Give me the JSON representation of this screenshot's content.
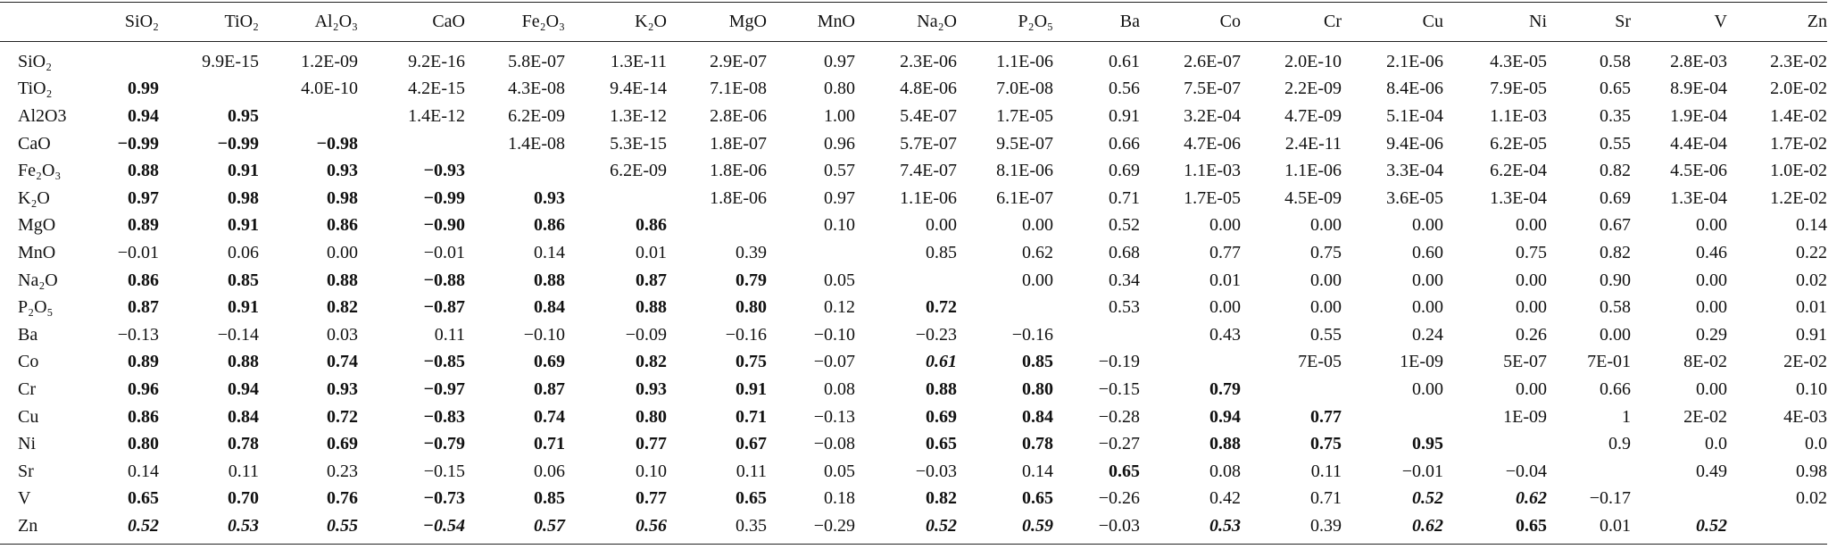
{
  "table": {
    "columns": [
      "SiO₂",
      "TiO₂",
      "Al₂O₃",
      "CaO",
      "Fe₂O₃",
      "K₂O",
      "MgO",
      "MnO",
      "Na₂O",
      "P₂O₅",
      "Ba",
      "Co",
      "Cr",
      "Cu",
      "Ni",
      "Sr",
      "V",
      "Zn"
    ],
    "rows": [
      {
        "label": "SiO₂",
        "cells": [
          null,
          "9.9E-15",
          "1.2E-09",
          "9.2E-16",
          "5.8E-07",
          "1.3E-11",
          "2.9E-07",
          "0.97",
          "2.3E-06",
          "1.1E-06",
          "0.61",
          "2.6E-07",
          "2.0E-10",
          "2.1E-06",
          "4.3E-05",
          "0.58",
          "2.8E-03",
          "2.3E-02"
        ]
      },
      {
        "label": "TiO₂",
        "cells": [
          {
            "text": "0.99",
            "style": "bold"
          },
          null,
          "4.0E-10",
          "4.2E-15",
          "4.3E-08",
          "9.4E-14",
          "7.1E-08",
          "0.80",
          "4.8E-06",
          "7.0E-08",
          "0.56",
          "7.5E-07",
          "2.2E-09",
          "8.4E-06",
          "7.9E-05",
          "0.65",
          "8.9E-04",
          "2.0E-02"
        ]
      },
      {
        "label": "Al2O3",
        "cells": [
          {
            "text": "0.94",
            "style": "bold"
          },
          {
            "text": "0.95",
            "style": "bold"
          },
          null,
          "1.4E-12",
          "6.2E-09",
          "1.3E-12",
          "2.8E-06",
          "1.00",
          "5.4E-07",
          "1.7E-05",
          "0.91",
          "3.2E-04",
          "4.7E-09",
          "5.1E-04",
          "1.1E-03",
          "0.35",
          "1.9E-04",
          "1.4E-02"
        ]
      },
      {
        "label": "CaO",
        "cells": [
          {
            "text": "−0.99",
            "style": "bold"
          },
          {
            "text": "−0.99",
            "style": "bold"
          },
          {
            "text": "−0.98",
            "style": "bold"
          },
          null,
          "1.4E-08",
          "5.3E-15",
          "1.8E-07",
          "0.96",
          "5.7E-07",
          "9.5E-07",
          "0.66",
          "4.7E-06",
          "2.4E-11",
          "9.4E-06",
          "6.2E-05",
          "0.55",
          "4.4E-04",
          "1.7E-02"
        ]
      },
      {
        "label": "Fe₂O₃",
        "cells": [
          {
            "text": "0.88",
            "style": "bold"
          },
          {
            "text": "0.91",
            "style": "bold"
          },
          {
            "text": "0.93",
            "style": "bold"
          },
          {
            "text": "−0.93",
            "style": "bold"
          },
          null,
          "6.2E-09",
          "1.8E-06",
          "0.57",
          "7.4E-07",
          "8.1E-06",
          "0.69",
          "1.1E-03",
          "1.1E-06",
          "3.3E-04",
          "6.2E-04",
          "0.82",
          "4.5E-06",
          "1.0E-02"
        ]
      },
      {
        "label": "K₂O",
        "cells": [
          {
            "text": "0.97",
            "style": "bold"
          },
          {
            "text": "0.98",
            "style": "bold"
          },
          {
            "text": "0.98",
            "style": "bold"
          },
          {
            "text": "−0.99",
            "style": "bold"
          },
          {
            "text": "0.93",
            "style": "bold"
          },
          null,
          "1.8E-06",
          "0.97",
          "1.1E-06",
          "6.1E-07",
          "0.71",
          "1.7E-05",
          "4.5E-09",
          "3.6E-05",
          "1.3E-04",
          "0.69",
          "1.3E-04",
          "1.2E-02"
        ]
      },
      {
        "label": "MgO",
        "cells": [
          {
            "text": "0.89",
            "style": "bold"
          },
          {
            "text": "0.91",
            "style": "bold"
          },
          {
            "text": "0.86",
            "style": "bold"
          },
          {
            "text": "−0.90",
            "style": "bold"
          },
          {
            "text": "0.86",
            "style": "bold"
          },
          {
            "text": "0.86",
            "style": "bold"
          },
          null,
          "0.10",
          "0.00",
          "0.00",
          "0.52",
          "0.00",
          "0.00",
          "0.00",
          "0.00",
          "0.67",
          "0.00",
          "0.14"
        ]
      },
      {
        "label": "MnO",
        "cells": [
          "−0.01",
          "0.06",
          "0.00",
          "−0.01",
          "0.14",
          "0.01",
          "0.39",
          null,
          "0.85",
          "0.62",
          "0.68",
          "0.77",
          "0.75",
          "0.60",
          "0.75",
          "0.82",
          "0.46",
          "0.22"
        ]
      },
      {
        "label": "Na₂O",
        "cells": [
          {
            "text": "0.86",
            "style": "bold"
          },
          {
            "text": "0.85",
            "style": "bold"
          },
          {
            "text": "0.88",
            "style": "bold"
          },
          {
            "text": "−0.88",
            "style": "bold"
          },
          {
            "text": "0.88",
            "style": "bold"
          },
          {
            "text": "0.87",
            "style": "bold"
          },
          {
            "text": "0.79",
            "style": "bold"
          },
          "0.05",
          null,
          "0.00",
          "0.34",
          "0.01",
          "0.00",
          "0.00",
          "0.00",
          "0.90",
          "0.00",
          "0.02"
        ]
      },
      {
        "label": "P₂O₅",
        "cells": [
          {
            "text": "0.87",
            "style": "bold"
          },
          {
            "text": "0.91",
            "style": "bold"
          },
          {
            "text": "0.82",
            "style": "bold"
          },
          {
            "text": "−0.87",
            "style": "bold"
          },
          {
            "text": "0.84",
            "style": "bold"
          },
          {
            "text": "0.88",
            "style": "bold"
          },
          {
            "text": "0.80",
            "style": "bold"
          },
          "0.12",
          {
            "text": "0.72",
            "style": "bold"
          },
          null,
          "0.53",
          "0.00",
          "0.00",
          "0.00",
          "0.00",
          "0.58",
          "0.00",
          "0.01"
        ]
      },
      {
        "label": "Ba",
        "cells": [
          "−0.13",
          "−0.14",
          "0.03",
          "0.11",
          "−0.10",
          "−0.09",
          "−0.16",
          "−0.10",
          "−0.23",
          "−0.16",
          null,
          "0.43",
          "0.55",
          "0.24",
          "0.26",
          "0.00",
          "0.29",
          "0.91"
        ]
      },
      {
        "label": "Co",
        "cells": [
          {
            "text": "0.89",
            "style": "bold"
          },
          {
            "text": "0.88",
            "style": "bold"
          },
          {
            "text": "0.74",
            "style": "bold"
          },
          {
            "text": "−0.85",
            "style": "bold"
          },
          {
            "text": "0.69",
            "style": "bold"
          },
          {
            "text": "0.82",
            "style": "bold"
          },
          {
            "text": "0.75",
            "style": "bold"
          },
          "−0.07",
          {
            "text": "0.61",
            "style": "bold-italic"
          },
          {
            "text": "0.85",
            "style": "bold"
          },
          "−0.19",
          null,
          "7E-05",
          "1E-09",
          "5E-07",
          "7E-01",
          "8E-02",
          "2E-02"
        ]
      },
      {
        "label": "Cr",
        "cells": [
          {
            "text": "0.96",
            "style": "bold"
          },
          {
            "text": "0.94",
            "style": "bold"
          },
          {
            "text": "0.93",
            "style": "bold"
          },
          {
            "text": "−0.97",
            "style": "bold"
          },
          {
            "text": "0.87",
            "style": "bold"
          },
          {
            "text": "0.93",
            "style": "bold"
          },
          {
            "text": "0.91",
            "style": "bold"
          },
          "0.08",
          {
            "text": "0.88",
            "style": "bold"
          },
          {
            "text": "0.80",
            "style": "bold"
          },
          "−0.15",
          {
            "text": "0.79",
            "style": "bold"
          },
          null,
          "0.00",
          "0.00",
          "0.66",
          "0.00",
          "0.10"
        ]
      },
      {
        "label": "Cu",
        "cells": [
          {
            "text": "0.86",
            "style": "bold"
          },
          {
            "text": "0.84",
            "style": "bold"
          },
          {
            "text": "0.72",
            "style": "bold"
          },
          {
            "text": "−0.83",
            "style": "bold"
          },
          {
            "text": "0.74",
            "style": "bold"
          },
          {
            "text": "0.80",
            "style": "bold"
          },
          {
            "text": "0.71",
            "style": "bold"
          },
          "−0.13",
          {
            "text": "0.69",
            "style": "bold"
          },
          {
            "text": "0.84",
            "style": "bold"
          },
          "−0.28",
          {
            "text": "0.94",
            "style": "bold"
          },
          {
            "text": "0.77",
            "style": "bold"
          },
          null,
          "1E-09",
          "1",
          "2E-02",
          "4E-03"
        ]
      },
      {
        "label": "Ni",
        "cells": [
          {
            "text": "0.80",
            "style": "bold"
          },
          {
            "text": "0.78",
            "style": "bold"
          },
          {
            "text": "0.69",
            "style": "bold"
          },
          {
            "text": "−0.79",
            "style": "bold"
          },
          {
            "text": "0.71",
            "style": "bold"
          },
          {
            "text": "0.77",
            "style": "bold"
          },
          {
            "text": "0.67",
            "style": "bold"
          },
          "−0.08",
          {
            "text": "0.65",
            "style": "bold"
          },
          {
            "text": "0.78",
            "style": "bold"
          },
          "−0.27",
          {
            "text": "0.88",
            "style": "bold"
          },
          {
            "text": "0.75",
            "style": "bold"
          },
          {
            "text": "0.95",
            "style": "bold"
          },
          null,
          "0.9",
          "0.0",
          "0.0"
        ]
      },
      {
        "label": "Sr",
        "cells": [
          "0.14",
          "0.11",
          "0.23",
          "−0.15",
          "0.06",
          "0.10",
          "0.11",
          "0.05",
          "−0.03",
          "0.14",
          {
            "text": "0.65",
            "style": "bold"
          },
          "0.08",
          "0.11",
          "−0.01",
          "−0.04",
          null,
          "0.49",
          "0.98"
        ]
      },
      {
        "label": "V",
        "cells": [
          {
            "text": "0.65",
            "style": "bold"
          },
          {
            "text": "0.70",
            "style": "bold"
          },
          {
            "text": "0.76",
            "style": "bold"
          },
          {
            "text": "−0.73",
            "style": "bold"
          },
          {
            "text": "0.85",
            "style": "bold"
          },
          {
            "text": "0.77",
            "style": "bold"
          },
          {
            "text": "0.65",
            "style": "bold"
          },
          "0.18",
          {
            "text": "0.82",
            "style": "bold"
          },
          {
            "text": "0.65",
            "style": "bold"
          },
          "−0.26",
          "0.42",
          "0.71",
          {
            "text": "0.52",
            "style": "bold-italic"
          },
          {
            "text": "0.62",
            "style": "bold-italic"
          },
          "−0.17",
          null,
          "0.02"
        ]
      },
      {
        "label": "Zn",
        "cells": [
          {
            "text": "0.52",
            "style": "bold-italic"
          },
          {
            "text": "0.53",
            "style": "bold-italic"
          },
          {
            "text": "0.55",
            "style": "bold-italic"
          },
          {
            "text": "−0.54",
            "style": "bold-italic"
          },
          {
            "text": "0.57",
            "style": "bold-italic"
          },
          {
            "text": "0.56",
            "style": "bold-italic"
          },
          "0.35",
          "−0.29",
          {
            "text": "0.52",
            "style": "bold-italic"
          },
          {
            "text": "0.59",
            "style": "bold-italic"
          },
          "−0.03",
          {
            "text": "0.53",
            "style": "bold-italic"
          },
          "0.39",
          {
            "text": "0.62",
            "style": "bold-italic"
          },
          {
            "text": "0.65",
            "style": "bold"
          },
          "0.01",
          {
            "text": "0.52",
            "style": "bold-italic"
          },
          null
        ]
      }
    ]
  }
}
